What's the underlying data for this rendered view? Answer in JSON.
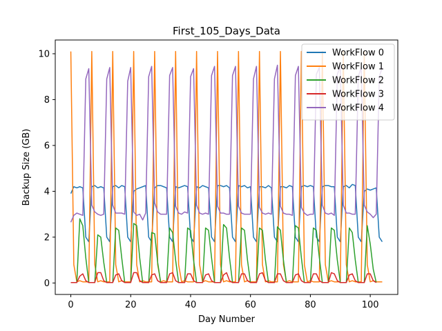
{
  "chart_data": {
    "type": "line",
    "title": "First_105_Days_Data",
    "xlabel": "Day Number",
    "ylabel": "Backup Size (GB)",
    "xlim": [
      -5.2,
      109.2
    ],
    "ylim": [
      -0.5,
      10.6
    ],
    "xticks": [
      0,
      20,
      40,
      60,
      80,
      100
    ],
    "yticks": [
      0,
      2,
      4,
      6,
      8,
      10
    ],
    "grid": false,
    "legend_position": "top-right",
    "series": [
      {
        "name": "WorkFlow 0",
        "color": "#1f77b4",
        "x_start": 0,
        "x_step": 1,
        "values": [
          3.9,
          4.2,
          4.15,
          4.2,
          4.15,
          2.0,
          1.8,
          4.2,
          4.25,
          4.15,
          4.2,
          4.15,
          2.0,
          1.8,
          4.2,
          4.25,
          4.15,
          4.25,
          4.2,
          2.0,
          1.8,
          4.0,
          4.1,
          4.15,
          4.2,
          4.25,
          2.0,
          1.8,
          4.15,
          4.25,
          4.25,
          4.2,
          4.15,
          2.0,
          1.8,
          4.2,
          4.15,
          4.2,
          4.25,
          4.2,
          2.0,
          1.8,
          4.2,
          4.15,
          4.25,
          4.2,
          4.15,
          2.0,
          1.8,
          4.25,
          4.25,
          4.2,
          4.25,
          4.15,
          2.0,
          1.8,
          4.25,
          4.2,
          4.25,
          4.15,
          4.2,
          2.0,
          1.8,
          4.2,
          4.2,
          4.15,
          4.25,
          4.15,
          2.0,
          1.8,
          4.2,
          4.2,
          4.15,
          4.25,
          4.2,
          2.0,
          1.8,
          4.2,
          4.25,
          4.2,
          4.25,
          4.2,
          2.0,
          1.8,
          4.2,
          4.25,
          4.25,
          4.2,
          4.2,
          2.0,
          1.8,
          4.2,
          4.25,
          4.15,
          4.3,
          4.25,
          2.0,
          1.8,
          4.0,
          4.1,
          4.05,
          4.1,
          4.15,
          2.0,
          1.8
        ]
      },
      {
        "name": "WorkFlow 1",
        "color": "#ff7f0e",
        "x_start": 0,
        "x_step": 1,
        "values": [
          10.1,
          0.8,
          0.05,
          0.1,
          0.05,
          0.05,
          0.05,
          10.1,
          0.8,
          0.05,
          0.1,
          0.05,
          0.05,
          0.05,
          10.1,
          0.8,
          0.05,
          0.1,
          0.05,
          0.05,
          0.05,
          10.1,
          0.8,
          0.05,
          0.1,
          0.05,
          0.05,
          0.05,
          10.1,
          0.8,
          0.05,
          0.1,
          0.05,
          0.05,
          0.05,
          10.1,
          0.8,
          0.05,
          0.1,
          0.05,
          0.05,
          0.05,
          10.1,
          0.8,
          0.05,
          0.1,
          0.05,
          0.05,
          0.05,
          10.1,
          0.8,
          0.05,
          0.1,
          0.05,
          0.05,
          0.05,
          10.1,
          0.8,
          0.05,
          0.1,
          0.05,
          0.05,
          0.05,
          10.1,
          0.8,
          0.05,
          0.1,
          0.05,
          0.05,
          0.05,
          10.1,
          0.8,
          0.05,
          0.1,
          0.05,
          0.05,
          0.05,
          10.1,
          0.8,
          0.05,
          0.1,
          0.05,
          0.05,
          0.05,
          10.1,
          0.8,
          0.05,
          0.1,
          0.05,
          0.05,
          0.05,
          10.1,
          0.8,
          0.05,
          0.1,
          0.05,
          0.05,
          0.05,
          10.1,
          0.8,
          0.05,
          0.1,
          0.05,
          0.05,
          0.05
        ]
      },
      {
        "name": "WorkFlow 2",
        "color": "#2ca02c",
        "x_start": 0,
        "x_step": 1,
        "values": [
          0.02,
          0.02,
          0.02,
          2.8,
          2.5,
          1.1,
          0.02,
          0.02,
          0.02,
          2.1,
          2.0,
          0.9,
          0.02,
          0.02,
          0.02,
          2.4,
          2.3,
          1.1,
          0.02,
          0.02,
          0.02,
          2.6,
          2.5,
          1.1,
          0.02,
          0.02,
          0.02,
          2.2,
          2.15,
          0.9,
          0.02,
          0.02,
          0.02,
          2.4,
          2.2,
          1.0,
          0.02,
          0.02,
          0.02,
          2.4,
          2.3,
          1.0,
          0.02,
          0.02,
          0.02,
          2.4,
          2.3,
          1.1,
          0.02,
          0.02,
          0.02,
          2.55,
          2.4,
          1.1,
          0.02,
          0.02,
          0.02,
          2.4,
          2.3,
          1.0,
          0.02,
          0.02,
          0.02,
          2.4,
          2.3,
          1.0,
          0.02,
          0.02,
          0.02,
          2.45,
          2.3,
          1.0,
          0.02,
          0.02,
          0.02,
          2.5,
          2.4,
          1.1,
          0.02,
          0.02,
          0.02,
          2.4,
          2.3,
          1.1,
          0.02,
          0.02,
          0.02,
          2.4,
          2.3,
          1.0,
          0.02,
          0.02,
          0.02,
          2.4,
          2.2,
          1.0,
          0.02,
          0.02,
          0.02,
          2.5,
          1.7,
          0.6,
          0.02
        ]
      },
      {
        "name": "WorkFlow 3",
        "color": "#d62728",
        "x_start": 0,
        "x_step": 1,
        "values": [
          0.02,
          0.02,
          0.02,
          0.3,
          0.4,
          0.1,
          0.02,
          0.02,
          0.02,
          0.45,
          0.45,
          0.1,
          0.02,
          0.02,
          0.02,
          0.35,
          0.4,
          0.1,
          0.02,
          0.02,
          0.02,
          0.45,
          0.45,
          0.1,
          0.02,
          0.02,
          0.02,
          0.35,
          0.4,
          0.1,
          0.02,
          0.02,
          0.02,
          0.4,
          0.45,
          0.1,
          0.02,
          0.02,
          0.02,
          0.4,
          0.4,
          0.1,
          0.02,
          0.02,
          0.02,
          0.35,
          0.4,
          0.1,
          0.02,
          0.02,
          0.02,
          0.35,
          0.45,
          0.1,
          0.02,
          0.02,
          0.02,
          0.4,
          0.4,
          0.1,
          0.02,
          0.02,
          0.02,
          0.4,
          0.45,
          0.1,
          0.02,
          0.02,
          0.02,
          0.4,
          0.4,
          0.1,
          0.02,
          0.02,
          0.02,
          0.35,
          0.4,
          0.1,
          0.02,
          0.02,
          0.02,
          0.4,
          0.4,
          0.1,
          0.02,
          0.02,
          0.02,
          0.45,
          0.4,
          0.1,
          0.02,
          0.02,
          0.02,
          0.35,
          0.4,
          0.1,
          0.02,
          0.02,
          0.02,
          0.4,
          0.4,
          0.1,
          0.02
        ]
      },
      {
        "name": "WorkFlow 4",
        "color": "#9467bd",
        "x_start": 0,
        "x_step": 1,
        "values": [
          2.65,
          2.95,
          3.05,
          3.0,
          2.95,
          8.9,
          9.35,
          3.4,
          3.1,
          3.0,
          2.95,
          3.0,
          8.9,
          9.4,
          3.4,
          3.05,
          3.05,
          3.05,
          3.0,
          8.8,
          9.4,
          3.1,
          2.95,
          3.0,
          2.75,
          3.05,
          9.0,
          9.45,
          3.5,
          3.1,
          3.0,
          3.0,
          3.0,
          9.05,
          9.4,
          3.35,
          3.05,
          3.0,
          3.1,
          3.05,
          9.0,
          9.35,
          3.4,
          3.05,
          3.0,
          3.05,
          3.0,
          9.05,
          9.45,
          3.35,
          3.05,
          3.05,
          3.0,
          3.0,
          9.05,
          9.45,
          3.35,
          3.05,
          3.0,
          3.0,
          3.0,
          8.9,
          9.45,
          3.3,
          3.05,
          3.0,
          3.05,
          3.0,
          8.9,
          9.5,
          3.35,
          3.05,
          3.0,
          3.0,
          2.95,
          9.05,
          9.45,
          3.3,
          3.05,
          2.95,
          3.0,
          3.0,
          9.1,
          9.4,
          3.4,
          3.05,
          3.0,
          3.05,
          2.95,
          9.1,
          9.45,
          3.4,
          3.05,
          3.05,
          3.0,
          3.0,
          9.0,
          9.4,
          3.4,
          3.1,
          3.0,
          2.85,
          3.0,
          9.0,
          9.4
        ]
      }
    ]
  }
}
